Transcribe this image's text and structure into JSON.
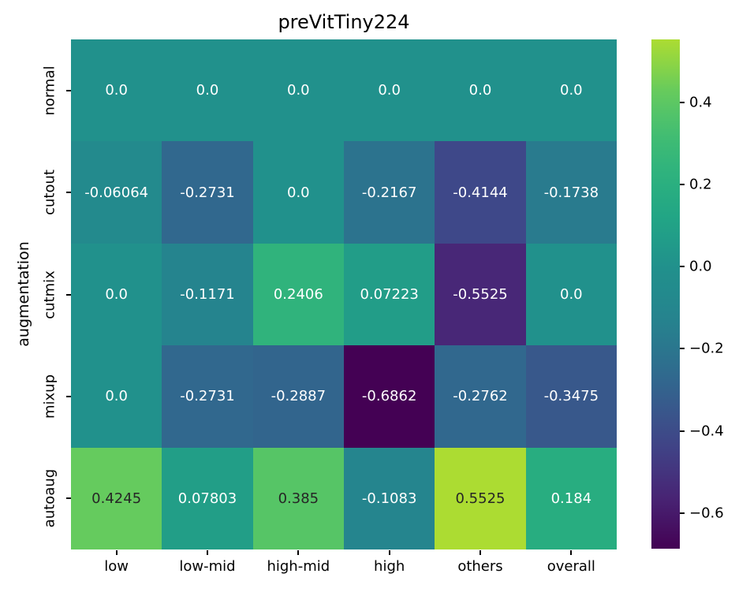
{
  "chart_data": {
    "type": "heatmap",
    "title": "preVitTiny224",
    "xlabel": "",
    "ylabel": "augmentation",
    "columns": [
      "low",
      "low-mid",
      "high-mid",
      "high",
      "others",
      "overall"
    ],
    "rows": [
      "normal",
      "cutout",
      "cutmix",
      "mixup",
      "autoaug"
    ],
    "annotations": [
      [
        "0.0",
        "0.0",
        "0.0",
        "0.0",
        "0.0",
        "0.0"
      ],
      [
        "-0.06064",
        "-0.2731",
        "0.0",
        "-0.2167",
        "-0.4144",
        "-0.1738"
      ],
      [
        "0.0",
        "-0.1171",
        "0.2406",
        "0.07223",
        "-0.5525",
        "0.0"
      ],
      [
        "0.0",
        "-0.2731",
        "-0.2887",
        "-0.6862",
        "-0.2762",
        "-0.3475"
      ],
      [
        "0.4245",
        "0.07803",
        "0.385",
        "-0.1083",
        "0.5525",
        "0.184"
      ]
    ],
    "values": [
      [
        0.0,
        0.0,
        0.0,
        0.0,
        0.0,
        0.0
      ],
      [
        -0.06064,
        -0.2731,
        0.0,
        -0.2167,
        -0.4144,
        -0.1738
      ],
      [
        0.0,
        -0.1171,
        0.2406,
        0.07223,
        -0.5525,
        0.0
      ],
      [
        0.0,
        -0.2731,
        -0.2887,
        -0.6862,
        -0.2762,
        -0.3475
      ],
      [
        0.4245,
        0.07803,
        0.385,
        -0.1083,
        0.5525,
        0.184
      ]
    ],
    "colormap": "viridis",
    "center": 0,
    "vmin": -0.6862,
    "vmax": 0.5525,
    "colorbar_tick_labels": [
      "0.4",
      "0.2",
      "0.0",
      "−0.2",
      "−0.4",
      "−0.6"
    ],
    "colorbar_tick_values": [
      0.4,
      0.2,
      0.0,
      -0.2,
      -0.4,
      -0.6
    ],
    "annotation_dark_color": "#262626",
    "annotation_light_color": "#ffffff",
    "legend_position": "right-colorbar",
    "grid": "off"
  }
}
